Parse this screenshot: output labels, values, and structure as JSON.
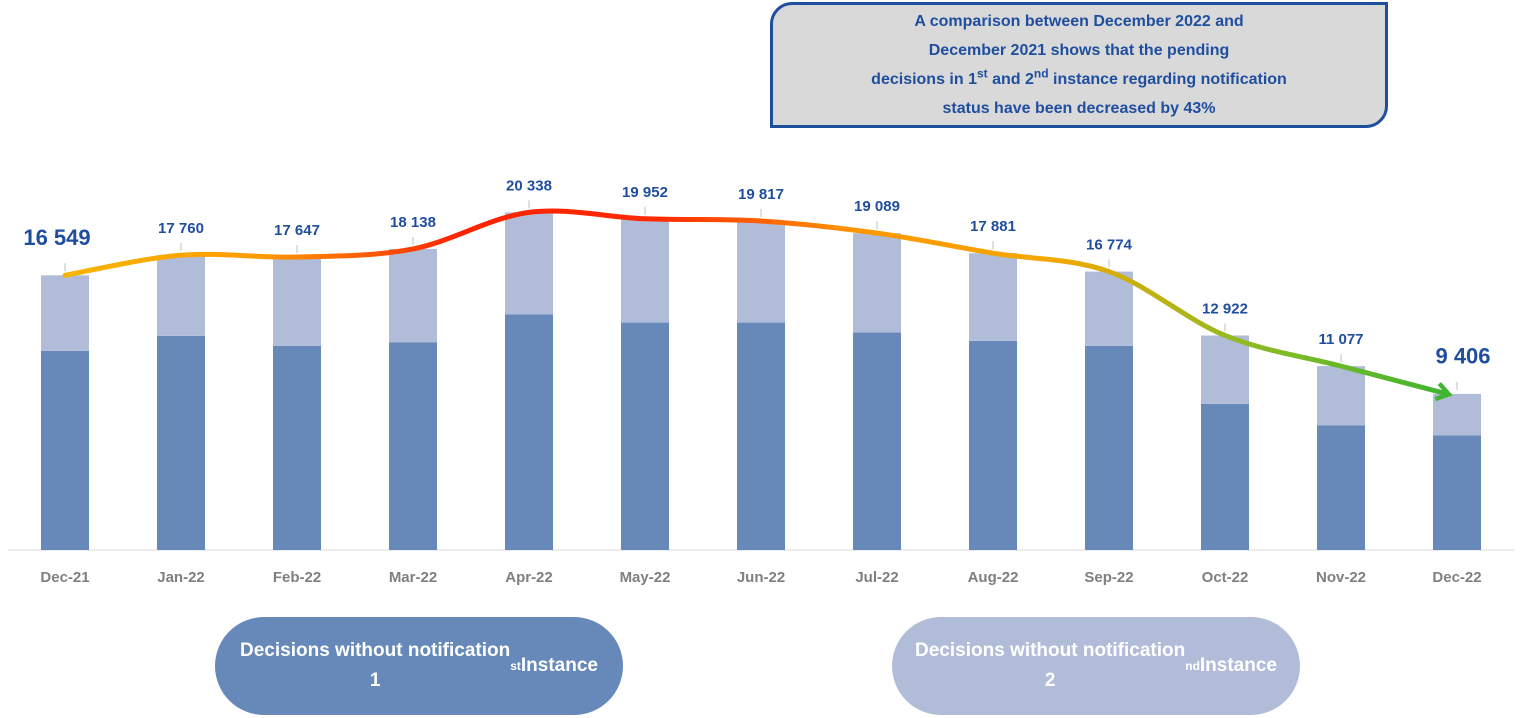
{
  "chart_data": {
    "type": "stacked_bar",
    "annotation": [
      "A comparison between December 2022 and",
      "December 2021 shows that the pending",
      "decisions in 1st and 2nd instance regarding notification",
      "status have been decreased by 43%"
    ],
    "categories": [
      "Dec-21",
      "Jan-22",
      "Feb-22",
      "Mar-22",
      "Apr-22",
      "May-22",
      "Jun-22",
      "Jul-22",
      "Aug-22",
      "Sep-22",
      "Oct-22",
      "Nov-22",
      "Dec-22"
    ],
    "series": [
      {
        "name": "Decisions without notification 1st Instance",
        "color": "#6689b9",
        "values": [
          12000,
          12900,
          12300,
          12500,
          14200,
          13700,
          13700,
          13100,
          12600,
          12300,
          8800,
          7500,
          6900
        ]
      },
      {
        "name": "Decisions without notification 2nd Instance",
        "color": "#b1bdd8",
        "values": [
          4549,
          4860,
          5347,
          5638,
          6138,
          6252,
          6117,
          5989,
          5281,
          4474,
          4122,
          3577,
          2506
        ]
      }
    ],
    "totals": {
      "values": [
        16549,
        17760,
        17647,
        18138,
        20338,
        19952,
        19817,
        19089,
        17881,
        16774,
        12922,
        11077,
        9406
      ],
      "value_labels": [
        "16 549",
        "17 760",
        "17 647",
        "18 138",
        "20 338",
        "19 952",
        "19 817",
        "19 089",
        "17 881",
        "16 774",
        "12 922",
        "11 077",
        "9 406"
      ]
    },
    "line_gradient": [
      "#f7b500",
      "#ff9a00",
      "#ff2200",
      "#ff2a00",
      "#ff9600",
      "#f4a800",
      "#8cbb24",
      "#3fb530"
    ],
    "ylim": [
      0,
      20000
    ]
  }
}
